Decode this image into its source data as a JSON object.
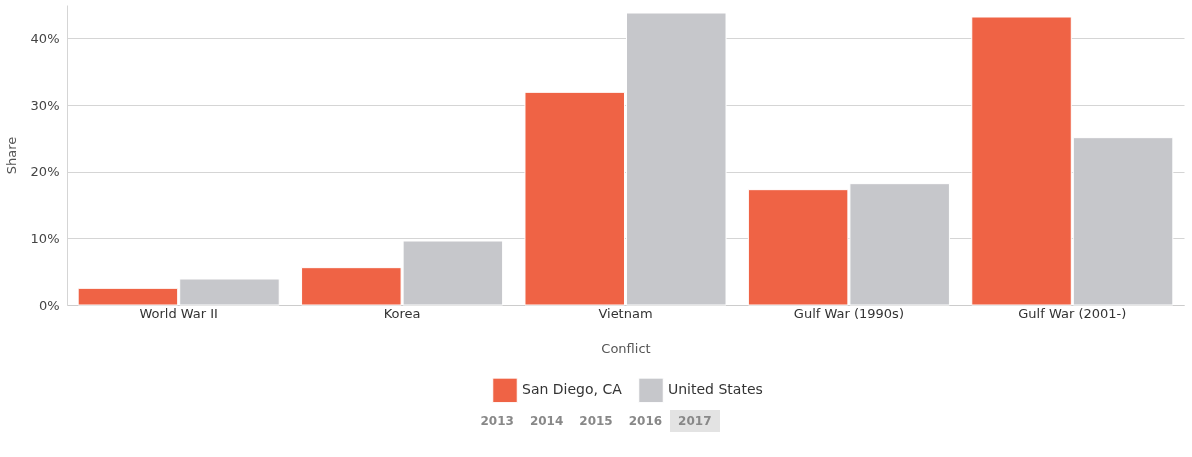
{
  "chart_data": {
    "type": "bar",
    "xlabel": "Conflict",
    "ylabel": "Share",
    "categories": [
      "World War II",
      "Korea",
      "Vietnam",
      "Gulf War (1990s)",
      "Gulf War (2001-)"
    ],
    "series": [
      {
        "name": "San Diego, CA",
        "color": "#ef6345",
        "values": [
          2.5,
          5.6,
          31.9,
          17.3,
          43.2
        ]
      },
      {
        "name": "United States",
        "color": "#c6c7cb",
        "values": [
          3.9,
          9.6,
          43.8,
          18.2,
          25.1
        ]
      }
    ],
    "ylim": [
      0,
      45
    ],
    "yticks": [
      {
        "value": 0,
        "label": "0%"
      },
      {
        "value": 10,
        "label": "10%"
      },
      {
        "value": 20,
        "label": "20%"
      },
      {
        "value": 30,
        "label": "30%"
      },
      {
        "value": 40,
        "label": "40%"
      }
    ],
    "grid": "y",
    "legend": "bottom",
    "annotations": [
      "2013",
      "2014",
      "2015",
      "2016",
      "2017"
    ]
  }
}
